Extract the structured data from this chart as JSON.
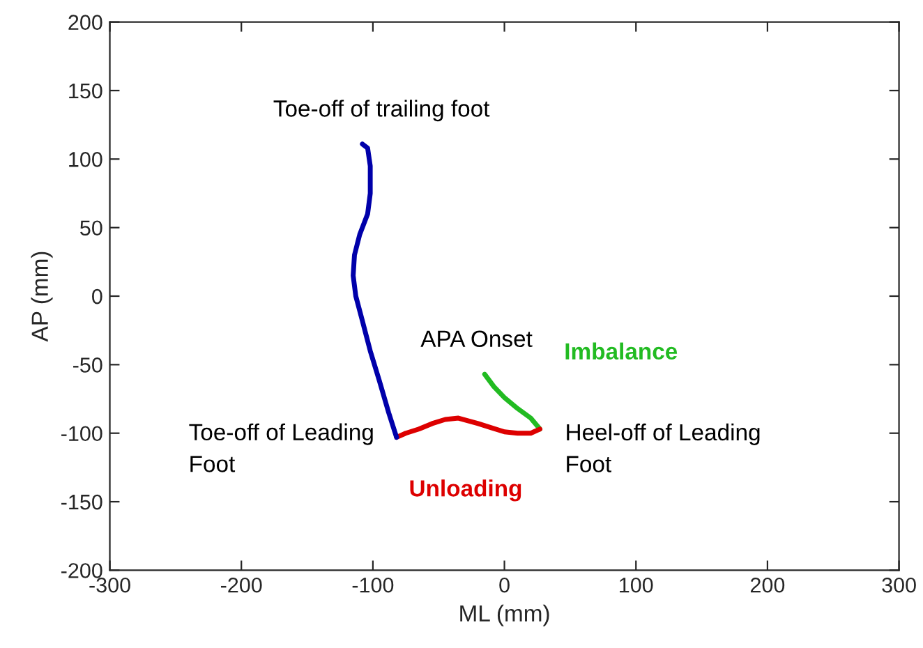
{
  "chart_data": {
    "type": "line",
    "xlabel": "ML (mm)",
    "ylabel": "AP (mm)",
    "xlim": [
      -300,
      300
    ],
    "ylim": [
      -200,
      200
    ],
    "xticks": [
      -300,
      -200,
      -100,
      0,
      100,
      200,
      300
    ],
    "yticks": [
      -200,
      -150,
      -100,
      -50,
      0,
      50,
      100,
      150,
      200
    ],
    "grid": false,
    "legend": false,
    "marker": "none",
    "line_style": "solid",
    "series": [
      {
        "name": "Imbalance",
        "color": "#22bb22",
        "x": [
          -15,
          -8,
          0,
          10,
          20,
          27
        ],
        "values": [
          -57,
          -66,
          -74,
          -82,
          -89,
          -97
        ]
      },
      {
        "name": "Unloading",
        "color": "#dd0000",
        "x": [
          27,
          20,
          10,
          0,
          -10,
          -20,
          -35,
          -45,
          -55,
          -65,
          -75,
          -82
        ],
        "values": [
          -97,
          -100,
          -100,
          -99,
          -96,
          -93,
          -89,
          -90,
          -93,
          -97,
          -100,
          -103
        ]
      },
      {
        "color": "#0000aa",
        "x": [
          -82,
          -88,
          -95,
          -102,
          -108,
          -113,
          -115,
          -114,
          -110,
          -104,
          -102,
          -102,
          -104,
          -108
        ],
        "values": [
          -103,
          -85,
          -62,
          -40,
          -18,
          0,
          15,
          30,
          45,
          60,
          75,
          95,
          108,
          111
        ]
      }
    ],
    "annotations": [
      {
        "text": "Toe-off of trailing foot",
        "x": -108,
        "y": 111
      },
      {
        "text": "APA Onset",
        "x": -15,
        "y": -57
      },
      {
        "text": "Toe-off of Leading\nFoot",
        "x": -82,
        "y": -103
      },
      {
        "text": "Heel-off of Leading\nFoot",
        "x": 27,
        "y": -97
      }
    ]
  }
}
